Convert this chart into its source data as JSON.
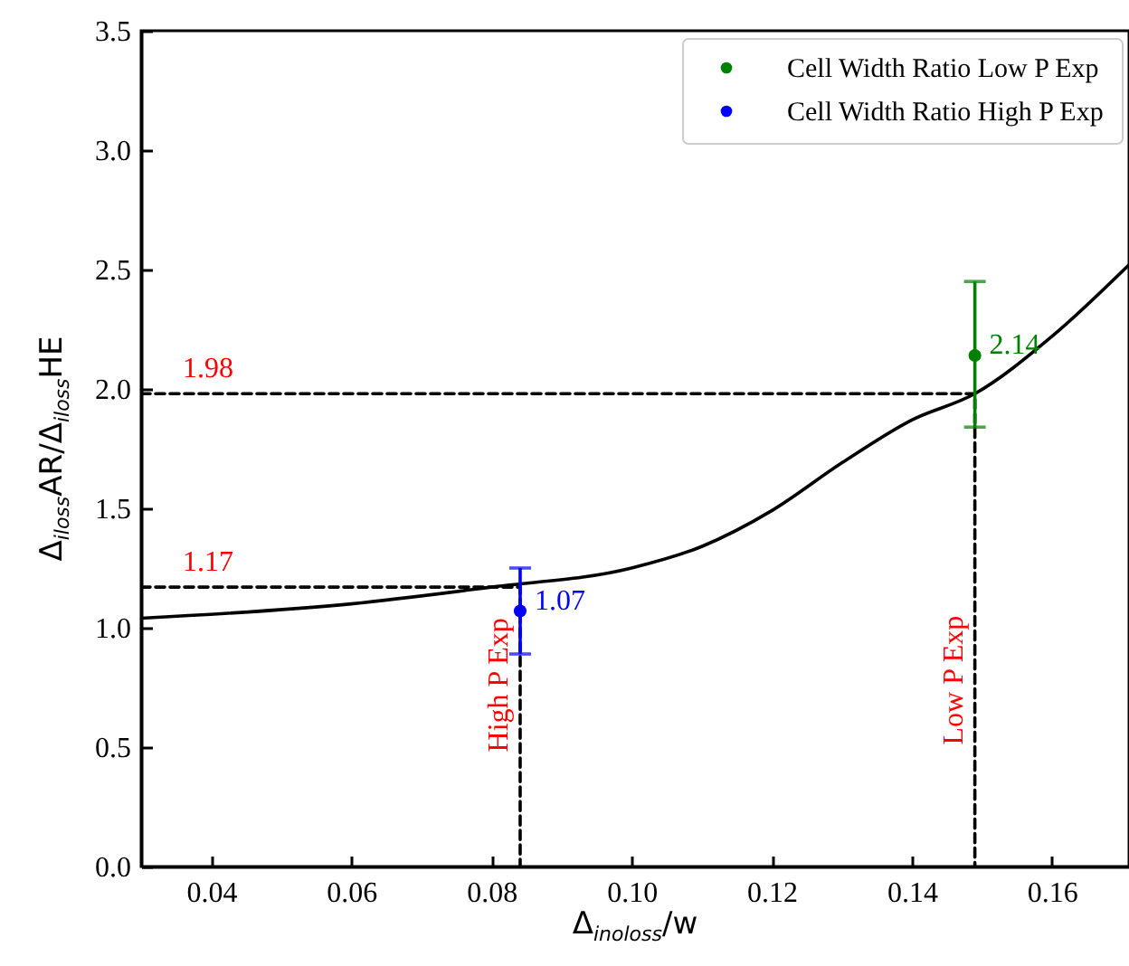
{
  "chart_data": {
    "type": "line",
    "xlabel": "Δ$_{inoloss}$/w",
    "ylabel": "Δ$_{iloss}$AR/Δ$_{iloss}$HE",
    "xlim": [
      0.03,
      0.171
    ],
    "xticks": [
      0.04,
      0.06,
      0.08,
      {
        "value": 0.1,
        "label": "0.10"
      },
      0.12,
      0.14,
      0.16
    ],
    "ylim": [
      0,
      3.5
    ],
    "yticks": [
      {
        "value": 0,
        "label": "0.0"
      },
      0.5,
      {
        "value": 1,
        "label": "1.0"
      },
      1.5,
      {
        "value": 2,
        "label": "2.0"
      },
      2.5,
      {
        "value": 3,
        "label": "3.0"
      },
      3.5
    ],
    "grid": false,
    "legend": "top right",
    "series": [
      {
        "color": "#000000",
        "line_style": "solid",
        "x": [
          0.03,
          0.06,
          0.08,
          0.1,
          0.11,
          0.12,
          0.13,
          0.14,
          0.149,
          0.16,
          0.171
        ],
        "values": [
          1.04,
          1.1,
          1.17,
          1.25,
          1.34,
          1.49,
          1.69,
          1.87,
          1.98,
          2.22,
          2.52
        ]
      },
      {
        "type": "line",
        "color": "#000000",
        "line_style": "dashed",
        "x": [
          0.03,
          0.149,
          0.149
        ],
        "values": [
          1.98,
          1.98,
          0
        ]
      },
      {
        "type": "line",
        "color": "#000000",
        "line_style": "dashed",
        "x": [
          0.03,
          0.0841,
          0.0841
        ],
        "values": [
          1.17,
          1.17,
          0
        ]
      },
      {
        "type": "scatter",
        "name": "Cell Width Ratio Low P Exp",
        "color": "#008000",
        "marker": "circle",
        "x": [
          0.149
        ],
        "values": [
          2.14
        ],
        "errors": [
          [
            1.84,
            2.45
          ]
        ]
      },
      {
        "type": "scatter",
        "name": "Cell Width Ratio High P Exp",
        "color": "#0000ff",
        "marker": "circle",
        "x": [
          0.0841
        ],
        "values": [
          1.07
        ],
        "errors": [
          [
            0.89,
            1.25
          ]
        ]
      }
    ],
    "annotations": [
      {
        "text": "1.98",
        "x": 0.03,
        "y": 1.98
      },
      {
        "text": "1.17",
        "x": 0.03,
        "y": 1.17
      },
      {
        "text": "2.14",
        "x": 0.149,
        "y": 2.14
      },
      {
        "text": "1.07",
        "x": 0.0841,
        "y": 1.07
      },
      {
        "text": "High P Exp",
        "x": 0.0841,
        "y": 0.76
      },
      {
        "text": "Low P Exp",
        "x": 0.149,
        "y": 0.78
      }
    ]
  }
}
